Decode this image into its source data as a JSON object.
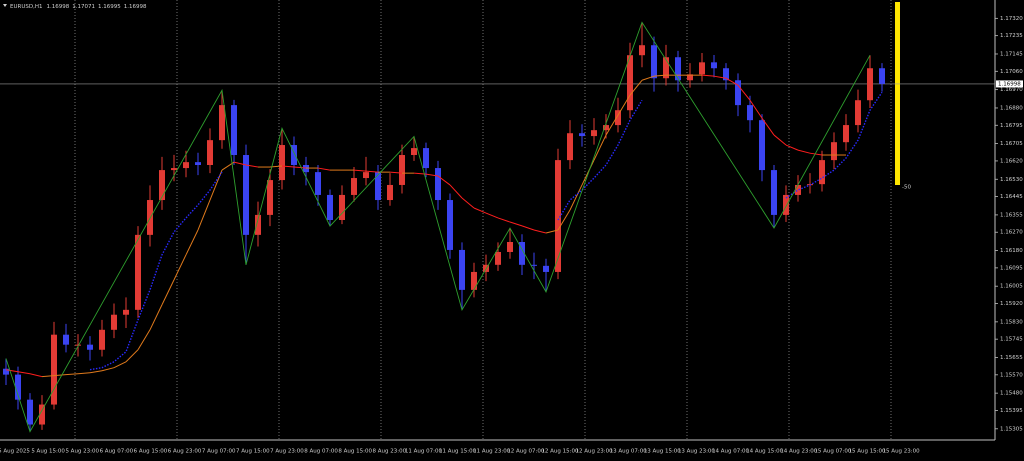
{
  "chart_data": {
    "type": "candlestick",
    "title": "EURUSD,H1",
    "header_prices": [
      1.16998,
      1.17071,
      1.16995,
      1.16998
    ],
    "open": [
      1.156,
      1.15571,
      1.15448,
      1.15326,
      1.15424,
      1.15767,
      1.15718,
      1.15718,
      1.15693,
      1.15791,
      1.15865,
      1.15889,
      1.16257,
      1.16428,
      1.16575,
      1.16585,
      1.16614,
      1.166,
      1.16722,
      1.16894,
      1.16649,
      1.16257,
      1.16355,
      1.16526,
      1.16698,
      1.166,
      1.16565,
      1.16453,
      1.1633,
      1.16453,
      1.16536,
      1.16565,
      1.16428,
      1.16502,
      1.16649,
      1.16683,
      1.16585,
      1.16428,
      1.16183,
      1.15987,
      1.16075,
      1.1611,
      1.16173,
      1.16222,
      1.1611,
      1.16105,
      1.16075,
      1.16624,
      1.16756,
      1.16742,
      1.16771,
      1.16796,
      1.16869,
      1.17139,
      1.17188,
      1.17026,
      1.17129,
      1.17016,
      1.17045,
      1.17104,
      1.17075,
      1.17016,
      1.16894,
      1.1682,
      1.16575,
      1.16355,
      1.16453,
      1.16502,
      1.16506,
      1.16624,
      1.16712,
      1.16796,
      1.16918,
      1.17075
    ],
    "high": [
      1.1565,
      1.1561,
      1.1548,
      1.1547,
      1.1583,
      1.1582,
      1.1577,
      1.1576,
      1.1584,
      1.1592,
      1.1595,
      1.163,
      1.165,
      1.1664,
      1.1665,
      1.1667,
      1.1666,
      1.1678,
      1.16967,
      1.1692,
      1.167,
      1.1642,
      1.1658,
      1.1678,
      1.1674,
      1.1664,
      1.166,
      1.1648,
      1.165,
      1.1659,
      1.1664,
      1.166,
      1.1656,
      1.167,
      1.1674,
      1.1671,
      1.1662,
      1.1646,
      1.1622,
      1.1612,
      1.1616,
      1.1622,
      1.1629,
      1.1626,
      1.1617,
      1.1614,
      1.1668,
      1.1682,
      1.168,
      1.1683,
      1.1685,
      1.1693,
      1.172,
      1.173,
      1.1723,
      1.1719,
      1.1716,
      1.171,
      1.1715,
      1.1714,
      1.171,
      1.1705,
      1.1694,
      1.1685,
      1.166,
      1.165,
      1.1655,
      1.1656,
      1.1667,
      1.1676,
      1.1685,
      1.1697,
      1.17139,
      1.171
    ],
    "low": [
      1.1552,
      1.154,
      1.15291,
      1.153,
      1.154,
      1.1568,
      1.1566,
      1.1564,
      1.1566,
      1.1575,
      1.158,
      1.1585,
      1.162,
      1.1638,
      1.1652,
      1.1654,
      1.1655,
      1.1656,
      1.1668,
      1.166,
      1.1611,
      1.162,
      1.163,
      1.1648,
      1.1655,
      1.165,
      1.164,
      1.163,
      1.1631,
      1.1642,
      1.165,
      1.1638,
      1.164,
      1.1646,
      1.1662,
      1.1654,
      1.1638,
      1.1614,
      1.15889,
      1.1595,
      1.1603,
      1.1608,
      1.1614,
      1.1606,
      1.1604,
      1.15977,
      1.1604,
      1.1658,
      1.1669,
      1.167,
      1.1673,
      1.1676,
      1.1683,
      1.1708,
      1.1696,
      1.1699,
      1.1696,
      1.1698,
      1.1701,
      1.1703,
      1.1697,
      1.1684,
      1.1676,
      1.1652,
      1.16291,
      1.1632,
      1.1642,
      1.1646,
      1.1647,
      1.1658,
      1.1667,
      1.1676,
      1.1688,
      1.1696
    ],
    "close": [
      1.15571,
      1.15448,
      1.15326,
      1.15424,
      1.15767,
      1.15718,
      1.15718,
      1.15693,
      1.15791,
      1.15865,
      1.15889,
      1.16257,
      1.16428,
      1.16575,
      1.16585,
      1.16614,
      1.166,
      1.16722,
      1.16894,
      1.16649,
      1.16257,
      1.16355,
      1.16526,
      1.16698,
      1.166,
      1.16565,
      1.16453,
      1.1633,
      1.16453,
      1.16536,
      1.16565,
      1.16428,
      1.16502,
      1.16649,
      1.16683,
      1.16585,
      1.16428,
      1.16183,
      1.15987,
      1.16075,
      1.1611,
      1.16173,
      1.16222,
      1.1611,
      1.16105,
      1.16075,
      1.16624,
      1.16756,
      1.16742,
      1.16771,
      1.16796,
      1.16869,
      1.17139,
      1.17188,
      1.17026,
      1.17129,
      1.17016,
      1.17045,
      1.17104,
      1.17075,
      1.17016,
      1.16894,
      1.1682,
      1.16575,
      1.16355,
      1.16453,
      1.16502,
      1.16506,
      1.16624,
      1.16712,
      1.16796,
      1.16918,
      1.17075,
      1.16998
    ],
    "up_color": "#e23b35",
    "down_color": "#3b44f2",
    "zigzag": {
      "color": "#2ea02e",
      "x": [
        0,
        2,
        18,
        20,
        23,
        27,
        34,
        38,
        42,
        45,
        53,
        64,
        72
      ],
      "values": [
        1.1565,
        1.15291,
        1.16967,
        1.1611,
        1.1678,
        1.163,
        1.1674,
        1.15889,
        1.1629,
        1.15977,
        1.173,
        1.16291,
        1.17139
      ]
    },
    "ma_slow": {
      "color": "#e07a1c",
      "down_color": "#ff1e1e",
      "values": [
        1.15595,
        1.15585,
        1.15575,
        1.15561,
        1.15566,
        1.15571,
        1.15575,
        1.1558,
        1.1559,
        1.15605,
        1.15634,
        1.15693,
        1.15791,
        1.15914,
        1.16036,
        1.16159,
        1.16281,
        1.16428,
        1.16575,
        1.16614,
        1.166,
        1.1659,
        1.1659,
        1.16595,
        1.1659,
        1.16585,
        1.16585,
        1.16575,
        1.16575,
        1.16575,
        1.1657,
        1.16565,
        1.16565,
        1.1656,
        1.1656,
        1.16555,
        1.16546,
        1.16502,
        1.16438,
        1.16389,
        1.16364,
        1.1634,
        1.1632,
        1.16301,
        1.16281,
        1.16266,
        1.16281,
        1.16379,
        1.16502,
        1.16624,
        1.16747,
        1.16845,
        1.16943,
        1.17016,
        1.17036,
        1.17041,
        1.17041,
        1.17041,
        1.17041,
        1.17036,
        1.17026,
        1.16992,
        1.16918,
        1.1683,
        1.16747,
        1.16698,
        1.16673,
        1.16658,
        1.16649,
        1.16649,
        1.16649,
        null,
        null,
        null
      ]
    },
    "ma_fast": {
      "color": "#2a2aff",
      "values": [
        null,
        null,
        null,
        null,
        null,
        null,
        null,
        1.15595,
        1.15605,
        1.15634,
        1.15683,
        1.1584,
        1.15987,
        1.16159,
        1.16271,
        1.1634,
        1.16404,
        1.16477,
        1.16565,
        null,
        null,
        null,
        null,
        null,
        null,
        null,
        null,
        null,
        null,
        null,
        null,
        null,
        null,
        null,
        null,
        null,
        null,
        null,
        null,
        null,
        null,
        null,
        null,
        null,
        null,
        null,
        1.1633,
        1.16428,
        1.16477,
        1.16536,
        1.166,
        1.16698,
        1.1682,
        1.16918,
        null,
        null,
        null,
        null,
        null,
        null,
        null,
        null,
        null,
        null,
        null,
        1.16438,
        1.16477,
        1.16502,
        1.16536,
        1.16575,
        1.16634,
        1.16722,
        1.16869,
        1.16957
      ]
    },
    "current_price": 1.16998,
    "indicator_label": "-50",
    "x_labels": [
      "5 Aug 2025",
      "5 Aug 15:00",
      "5 Aug 23:00",
      "6 Aug 07:00",
      "6 Aug 15:00",
      "6 Aug 23:00",
      "7 Aug 07:00",
      "7 Aug 15:00",
      "7 Aug 23:00",
      "8 Aug 07:00",
      "8 Aug 15:00",
      "8 Aug 23:00",
      "11 Aug 07:00",
      "11 Aug 15:00",
      "11 Aug 23:00",
      "12 Aug 07:00",
      "12 Aug 15:00",
      "12 Aug 23:00",
      "13 Aug 07:00",
      "13 Aug 15:00",
      "13 Aug 23:00",
      "14 Aug 07:00",
      "14 Aug 15:00",
      "14 Aug 23:00",
      "15 Aug 07:00",
      "15 Aug 15:00",
      "15 Aug 23:00"
    ],
    "ylim": [
      1.1525,
      1.1741
    ],
    "yticks": [
      {
        "value": 1.1732,
        "label": "1.17320"
      },
      1.17235,
      1.17145,
      {
        "value": 1.1706,
        "label": "1.17060"
      },
      {
        "value": 1.1697,
        "label": "1.16970"
      },
      {
        "value": 1.1688,
        "label": "1.16880"
      },
      1.16795,
      1.16705,
      {
        "value": 1.1662,
        "label": "1.16620"
      },
      {
        "value": 1.1653,
        "label": "1.16530"
      },
      1.16445,
      1.16355,
      {
        "value": 1.1627,
        "label": "1.16270"
      },
      {
        "value": 1.1618,
        "label": "1.16180"
      },
      1.16095,
      1.16005,
      {
        "value": 1.1592,
        "label": "1.15920"
      },
      {
        "value": 1.1583,
        "label": "1.15830"
      },
      1.15745,
      1.15655,
      {
        "value": 1.1557,
        "label": "1.15570"
      },
      {
        "value": 1.1548,
        "label": "1.15480"
      },
      1.15395,
      1.15305
    ],
    "grid": false
  }
}
